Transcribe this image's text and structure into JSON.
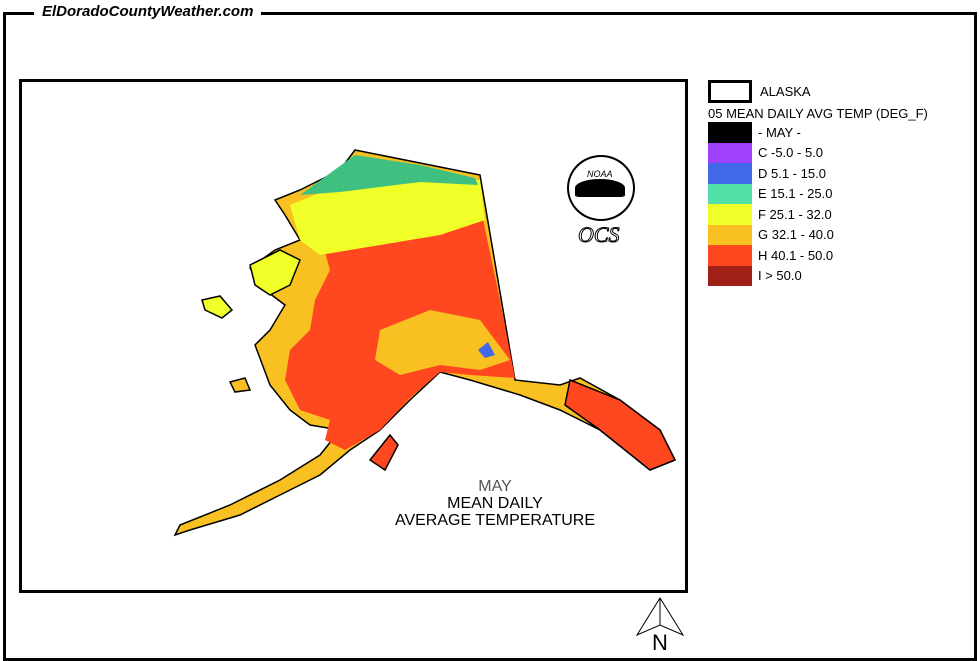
{
  "header": {
    "site": "ElDoradoCountyWeather.com"
  },
  "legend": {
    "region_label": "ALASKA",
    "title": "05 MEAN DAILY AVG TEMP (DEG_F)",
    "items": [
      {
        "label": "- MAY -",
        "color": "#000000"
      },
      {
        "label": "C  -5.0 - 5.0",
        "color": "#a040ff"
      },
      {
        "label": "D  5.1 - 15.0",
        "color": "#4068e8"
      },
      {
        "label": "E  15.1 - 25.0",
        "color": "#50e0a8"
      },
      {
        "label": "F  25.1 - 32.0",
        "color": "#f0ff28"
      },
      {
        "label": "G  32.1 - 40.0",
        "color": "#f8c020"
      },
      {
        "label": "H  40.1 - 50.0",
        "color": "#ff4820"
      },
      {
        "label": "I  > 50.0",
        "color": "#a02018"
      }
    ]
  },
  "map_title": {
    "month": "MAY",
    "line1": "MEAN DAILY",
    "line2": "AVERAGE TEMPERATURE"
  },
  "logo": {
    "agency": "NOAA",
    "office": "OCS"
  },
  "north_arrow": {
    "label": "N"
  }
}
